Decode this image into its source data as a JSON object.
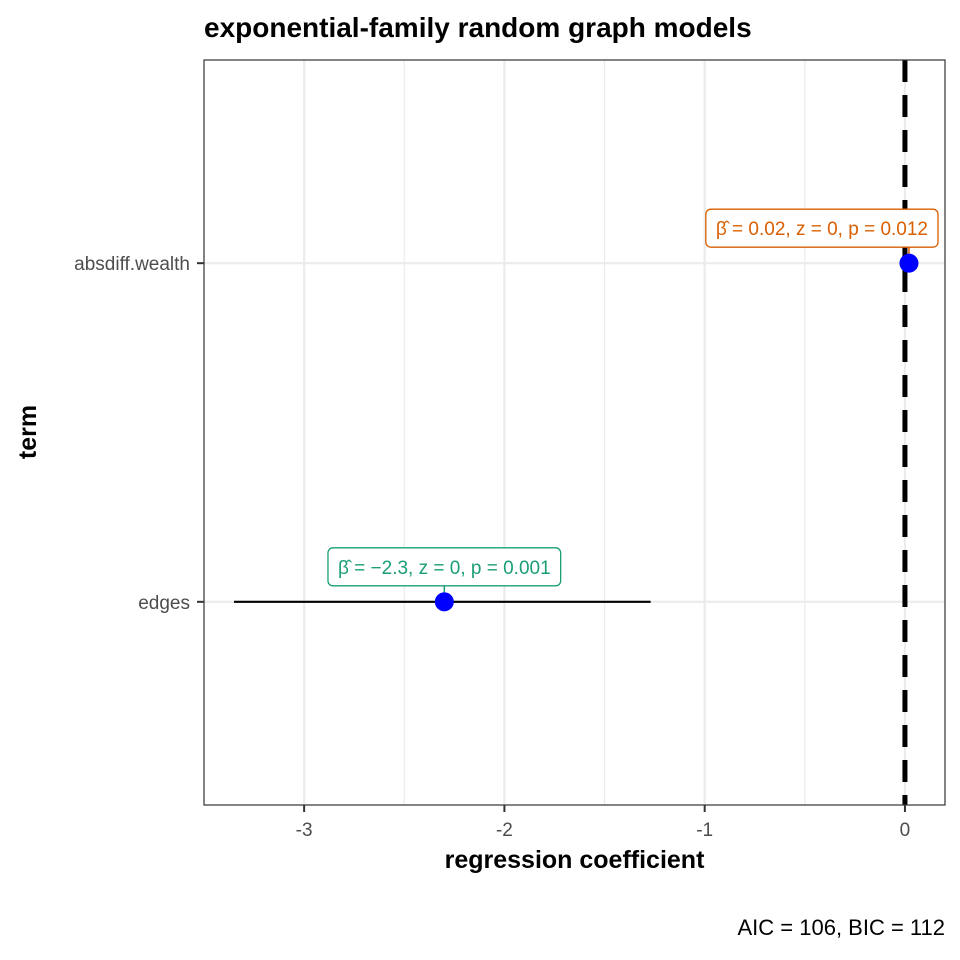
{
  "chart_data": {
    "type": "scatter",
    "title": "exponential-family random graph models",
    "xlabel": "regression coefficient",
    "ylabel": "term",
    "caption": "AIC = 106, BIC = 112",
    "xlim": [
      -3.5,
      0.2
    ],
    "x_ticks": [
      -3,
      -2,
      -1,
      0
    ],
    "x_tick_labels": [
      "-3",
      "-2",
      "-1",
      "0"
    ],
    "categories": [
      "edges",
      "absdiff.wealth"
    ],
    "grid": true,
    "reference_line": {
      "x": 0,
      "style": "dashed",
      "color": "#000000"
    },
    "points": [
      {
        "term": "edges",
        "estimate": -2.3,
        "conf_low": -3.35,
        "conf_high": -1.27,
        "label": "β̂ = −2.3, z = 0, p = 0.001",
        "label_color": "#1B9E77"
      },
      {
        "term": "absdiff.wealth",
        "estimate": 0.02,
        "conf_low": 0.005,
        "conf_high": 0.035,
        "label": "β̂ = 0.02, z = 0, p = 0.012",
        "label_color": "#D95F02"
      }
    ],
    "point_color": "#0000FF"
  }
}
